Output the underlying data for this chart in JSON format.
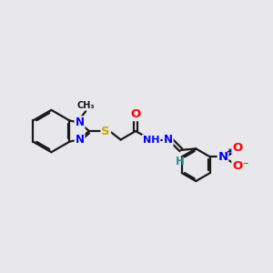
{
  "bg_color": "#e8e8ec",
  "bond_color": "#1a1a1a",
  "bond_width": 1.6,
  "atom_colors": {
    "N": "#0000ff",
    "O": "#ff0000",
    "S": "#ccaa00",
    "H": "#2e8b8b",
    "C": "#1a1a1a"
  },
  "font_size": 8.5,
  "fig_width": 3.0,
  "fig_height": 3.0,
  "dpi": 100,
  "xlim": [
    0,
    10
  ],
  "ylim": [
    0,
    10
  ]
}
